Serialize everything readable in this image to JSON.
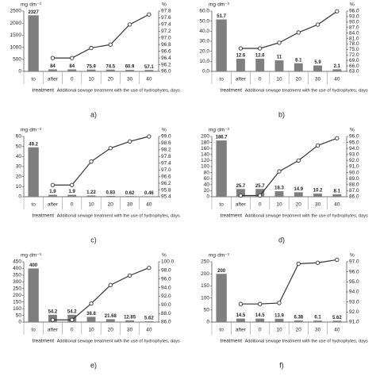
{
  "chart_data": [
    {
      "type": "bar",
      "panel": "a)",
      "unit_y": "mg·dm⁻³",
      "unit_y2": "%",
      "categories": [
        "to",
        "after",
        "0",
        "10",
        "20",
        "30",
        "40"
      ],
      "group_labels": [
        "treatment",
        "Additional sewage treatment with the use of hydrophytes, days"
      ],
      "series": [
        {
          "color": "#7f7f7f",
          "values": [
            2327,
            84,
            84,
            75.9,
            74.5,
            60.9,
            57.1
          ]
        },
        {
          "color": "#333333",
          "axis": "y2",
          "values": [
            null,
            96.4,
            96.4,
            96.7,
            96.8,
            97.4,
            97.7
          ]
        }
      ],
      "ylim": [
        0,
        2500
      ],
      "yticks": [
        0,
        500,
        1000,
        1500,
        2000,
        2500
      ],
      "y2lim": [
        96.0,
        97.8
      ],
      "y2ticks": [
        {
          "value": 96,
          "label": "96.0"
        },
        96.2,
        96.4,
        96.6,
        96.8,
        {
          "value": 97,
          "label": "97.0"
        },
        97.2,
        97.4,
        97.6,
        97.8
      ]
    },
    {
      "type": "bar",
      "panel": "b)",
      "unit_y": "mg·dm⁻³",
      "unit_y2": "%",
      "categories": [
        "to",
        "after",
        "0",
        "10",
        "20",
        "30",
        "40"
      ],
      "group_labels": [
        "treatment",
        "Additional sewage treatment with the use of hydrophytes, days"
      ],
      "series": [
        {
          "color": "#7f7f7f",
          "values": [
            51.7,
            12.6,
            12.6,
            11.0,
            8.1,
            5.9,
            2.1
          ]
        },
        {
          "color": "#333333",
          "axis": "y2",
          "values": [
            null,
            75.6,
            75.6,
            78.7,
            84.3,
            88.6,
            95.9
          ]
        }
      ],
      "ylim": [
        0,
        60
      ],
      "yticks": [
        {
          "value": 0,
          "label": "0.0"
        },
        {
          "value": 10,
          "label": "10.0"
        },
        {
          "value": 20,
          "label": "20.0"
        },
        {
          "value": 30,
          "label": "30.0"
        },
        {
          "value": 40,
          "label": "40.0"
        },
        {
          "value": 50,
          "label": "50.0"
        },
        {
          "value": 60,
          "label": "60.0"
        }
      ],
      "y2lim": [
        63,
        96
      ],
      "y2ticks": [
        {
          "value": 63,
          "label": "63.0"
        },
        {
          "value": 66,
          "label": "66.0"
        },
        {
          "value": 69,
          "label": "69.0"
        },
        {
          "value": 72,
          "label": "72.0"
        },
        {
          "value": 75,
          "label": "75.0"
        },
        {
          "value": 78,
          "label": "78.0"
        },
        {
          "value": 81,
          "label": "81.0"
        },
        {
          "value": 84,
          "label": "84.0"
        },
        {
          "value": 87,
          "label": "87.0"
        },
        {
          "value": 90,
          "label": "90.0"
        },
        {
          "value": 93,
          "label": "93.0"
        },
        {
          "value": 96,
          "label": "96.0"
        }
      ]
    },
    {
      "type": "bar",
      "panel": "c)",
      "unit_y": "mg·dm⁻³",
      "unit_y2": "%",
      "categories": [
        "to",
        "after",
        "0",
        "10",
        "20",
        "30",
        "40"
      ],
      "group_labels": [
        "treatment",
        "Additional sewage treatment with the use of hydrophytes, days"
      ],
      "series": [
        {
          "color": "#7f7f7f",
          "values": [
            49.2,
            1.9,
            1.9,
            1.22,
            0.83,
            0.62,
            0.46
          ]
        },
        {
          "color": "#333333",
          "axis": "y2",
          "values": [
            null,
            96.1,
            96.1,
            97.5,
            98.3,
            98.7,
            99.0
          ]
        }
      ],
      "ylim": [
        0,
        60
      ],
      "yticks": [
        0,
        10,
        20,
        30,
        40,
        50,
        60
      ],
      "y2lim": [
        95.4,
        99.0
      ],
      "y2ticks": [
        95.4,
        95.8,
        96.2,
        96.6,
        {
          "value": 97,
          "label": "97.0"
        },
        97.4,
        97.8,
        98.2,
        98.6,
        {
          "value": 99,
          "label": "99.0"
        }
      ]
    },
    {
      "type": "bar",
      "panel": "d)",
      "unit_y": "mg·dm⁻³",
      "unit_y2": "%",
      "categories": [
        "to",
        "after",
        "0",
        "10",
        "20",
        "30",
        "40"
      ],
      "group_labels": [
        "treatment",
        "Additional sewage treatment with the use of hydrophytes, days"
      ],
      "series": [
        {
          "color": "#7f7f7f",
          "values": [
            186.7,
            25.7,
            25.7,
            18.3,
            14.9,
            10.2,
            8.1
          ]
        },
        {
          "color": "#333333",
          "axis": "y2",
          "values": [
            null,
            86.2,
            86.2,
            90.2,
            92.0,
            94.5,
            95.7
          ]
        }
      ],
      "ylim": [
        0,
        200
      ],
      "yticks": [
        0,
        20,
        40,
        60,
        80,
        100,
        120,
        140,
        160,
        180,
        200
      ],
      "y2lim": [
        86,
        96
      ],
      "y2ticks": [
        {
          "value": 86,
          "label": "86.0"
        },
        {
          "value": 87,
          "label": "87.0"
        },
        {
          "value": 88,
          "label": "88.0"
        },
        {
          "value": 89,
          "label": "89.0"
        },
        {
          "value": 90,
          "label": "90.0"
        },
        {
          "value": 91,
          "label": "91.0"
        },
        {
          "value": 92,
          "label": "92.0"
        },
        {
          "value": 93,
          "label": "93.0"
        },
        {
          "value": 94,
          "label": "94.0"
        },
        {
          "value": 95,
          "label": "95.0"
        },
        {
          "value": 96,
          "label": "96.0"
        }
      ]
    },
    {
      "type": "bar",
      "panel": "e)",
      "unit_y": "mg·dm⁻³",
      "unit_y2": "%",
      "categories": [
        "to",
        "after",
        "0",
        "10",
        "20",
        "30",
        "40"
      ],
      "group_labels": [
        "treatment",
        "Additional sewage treatment with the use of hydrophytes, days"
      ],
      "series": [
        {
          "color": "#7f7f7f",
          "values": [
            400,
            54.2,
            54.2,
            38.8,
            21.68,
            12.85,
            5.62
          ]
        },
        {
          "color": "#333333",
          "axis": "y2",
          "values": [
            null,
            86.5,
            86.5,
            90.3,
            94.6,
            96.8,
            98.6
          ]
        }
      ],
      "ylim": [
        0,
        450
      ],
      "yticks": [
        0,
        50,
        100,
        150,
        200,
        250,
        300,
        350,
        400,
        450
      ],
      "y2lim": [
        86,
        100
      ],
      "y2ticks": [
        {
          "value": 86,
          "label": "86.0"
        },
        {
          "value": 88,
          "label": "88.0"
        },
        {
          "value": 90,
          "label": "90.0"
        },
        {
          "value": 92,
          "label": "92.0"
        },
        {
          "value": 94,
          "label": "94.0"
        },
        {
          "value": 96,
          "label": "96.0"
        },
        {
          "value": 98,
          "label": "98.0"
        },
        {
          "value": 100,
          "label": "100.0"
        }
      ]
    },
    {
      "type": "bar",
      "panel": "f)",
      "unit_y": "mg·dm⁻³",
      "unit_y2": "%",
      "categories": [
        "to",
        "after",
        "0",
        "10",
        "20",
        "30",
        "40"
      ],
      "group_labels": [
        "treatment",
        "Additional sewage treatment with the use of hydrophytes, days"
      ],
      "series": [
        {
          "color": "#7f7f7f",
          "values": [
            200,
            14.5,
            14.5,
            13.9,
            6.38,
            6.1,
            5.62
          ]
        },
        {
          "color": "#333333",
          "axis": "y2",
          "values": [
            null,
            92.8,
            92.8,
            92.9,
            96.8,
            96.9,
            97.2
          ]
        }
      ],
      "ylim": [
        0,
        250
      ],
      "yticks": [
        0,
        50,
        100,
        150,
        200,
        250
      ],
      "y2lim": [
        91,
        97
      ],
      "y2ticks": [
        {
          "value": 91,
          "label": "91.0"
        },
        {
          "value": 92,
          "label": "92.0"
        },
        {
          "value": 93,
          "label": "93.0"
        },
        {
          "value": 94,
          "label": "94.0"
        },
        {
          "value": 95,
          "label": "95.0"
        },
        {
          "value": 96,
          "label": "96.0"
        },
        {
          "value": 97,
          "label": "97.0"
        }
      ]
    }
  ]
}
